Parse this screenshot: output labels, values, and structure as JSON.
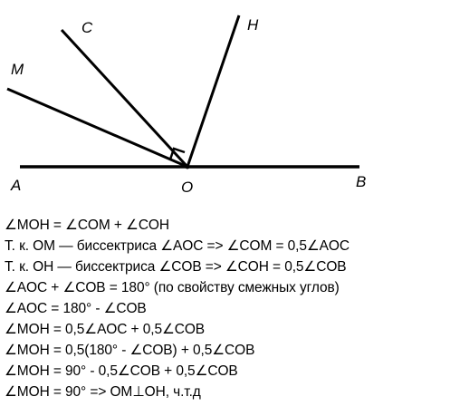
{
  "figure": {
    "points": {
      "A": "A",
      "B": "B",
      "O": "O",
      "M": "M",
      "C": "C",
      "H": "H"
    }
  },
  "proof": {
    "lines": [
      "∠MOH = ∠COM + ∠COH",
      "Т. к. OM — биссектриса ∠AOC => ∠COM = 0,5∠AOC",
      "Т. к. OH — биссектриса ∠COB => ∠COH = 0,5∠COB",
      "∠AOC + ∠COB = 180° (по свойству смежных углов)",
      "∠AOC = 180° - ∠COB",
      "∠MOH = 0,5∠AOC + 0,5∠COB",
      "∠MOH = 0,5(180° - ∠COB) + 0,5∠COB",
      "∠MOH = 90° - 0,5∠COB + 0,5∠COB",
      "∠MOH = 90° => OM⊥OH, ч.т.д"
    ]
  }
}
